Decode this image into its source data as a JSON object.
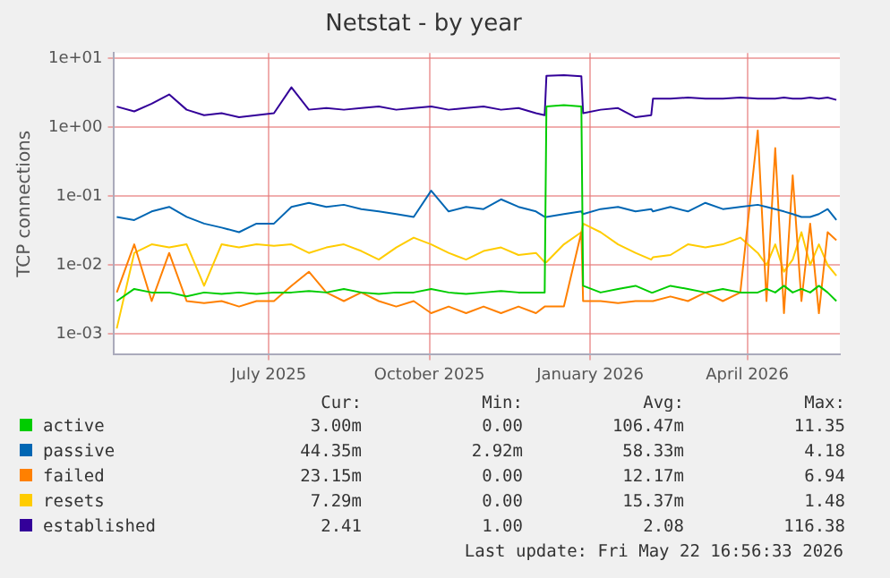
{
  "chart_data": {
    "type": "line",
    "title": "Netstat - by year",
    "ylabel": "TCP connections",
    "log": true,
    "grid": true,
    "legend": "bottom",
    "marker": "none",
    "line_style": "solid",
    "ylim": [
      0.0005,
      12
    ],
    "yticks": [
      {
        "value": 0.001,
        "label": "1e-03"
      },
      {
        "value": 0.01,
        "label": "1e-02"
      },
      {
        "value": 0.1,
        "label": "1e-01"
      },
      {
        "value": 1,
        "label": "1e+00"
      },
      {
        "value": 10,
        "label": "1e+01"
      }
    ],
    "xlim": [
      "2025-04-03",
      "2026-05-24"
    ],
    "xticks": [
      {
        "value": "2025-07-01",
        "label": "July 2025"
      },
      {
        "value": "2025-10-01",
        "label": "October 2025"
      },
      {
        "value": "2026-01-01",
        "label": "January 2026"
      },
      {
        "value": "2026-04-01",
        "label": "April 2026"
      }
    ],
    "x": [
      "2025-04-05",
      "2025-04-15",
      "2025-04-25",
      "2025-05-05",
      "2025-05-15",
      "2025-05-25",
      "2025-06-04",
      "2025-06-14",
      "2025-06-24",
      "2025-07-04",
      "2025-07-14",
      "2025-07-24",
      "2025-08-03",
      "2025-08-13",
      "2025-08-23",
      "2025-09-02",
      "2025-09-12",
      "2025-09-22",
      "2025-10-02",
      "2025-10-12",
      "2025-10-22",
      "2025-11-01",
      "2025-11-11",
      "2025-11-21",
      "2025-12-01",
      "2025-12-06",
      "2025-12-07",
      "2025-12-17",
      "2025-12-27",
      "2025-12-28",
      "2026-01-07",
      "2026-01-17",
      "2026-01-27",
      "2026-02-05",
      "2026-02-06",
      "2026-02-16",
      "2026-02-26",
      "2026-03-08",
      "2026-03-18",
      "2026-03-28",
      "2026-04-07",
      "2026-04-12",
      "2026-04-17",
      "2026-04-22",
      "2026-04-27",
      "2026-05-02",
      "2026-05-07",
      "2026-05-12",
      "2026-05-17",
      "2026-05-22"
    ],
    "series": [
      {
        "name": "active",
        "color": "#00cc00",
        "values": [
          0.003,
          0.0045,
          0.004,
          0.004,
          0.0035,
          0.004,
          0.0038,
          0.004,
          0.0038,
          0.004,
          0.004,
          0.0042,
          0.004,
          0.0045,
          0.004,
          0.0038,
          0.004,
          0.004,
          0.0045,
          0.004,
          0.0038,
          0.004,
          0.0042,
          0.004,
          0.004,
          0.004,
          2.0,
          2.1,
          2.0,
          0.005,
          0.004,
          0.0045,
          0.005,
          0.004,
          0.004,
          0.005,
          0.0045,
          0.004,
          0.0045,
          0.004,
          0.004,
          0.0045,
          0.004,
          0.005,
          0.004,
          0.0045,
          0.004,
          0.005,
          0.004,
          0.003
        ]
      },
      {
        "name": "passive",
        "color": "#0066b3",
        "values": [
          0.05,
          0.045,
          0.06,
          0.07,
          0.05,
          0.04,
          0.035,
          0.03,
          0.04,
          0.04,
          0.07,
          0.08,
          0.07,
          0.075,
          0.065,
          0.06,
          0.055,
          0.05,
          0.12,
          0.06,
          0.07,
          0.065,
          0.09,
          0.07,
          0.06,
          0.05,
          0.05,
          0.055,
          0.06,
          0.055,
          0.065,
          0.07,
          0.06,
          0.065,
          0.06,
          0.07,
          0.06,
          0.08,
          0.065,
          0.07,
          0.075,
          0.07,
          0.065,
          0.06,
          0.055,
          0.05,
          0.05,
          0.055,
          0.065,
          0.045
        ]
      },
      {
        "name": "failed",
        "color": "#ff8000",
        "values": [
          0.004,
          0.02,
          0.003,
          0.015,
          0.003,
          0.0028,
          0.003,
          0.0025,
          0.003,
          0.003,
          0.005,
          0.008,
          0.004,
          0.003,
          0.004,
          0.003,
          0.0025,
          0.003,
          0.002,
          0.0025,
          0.002,
          0.0025,
          0.002,
          0.0025,
          0.002,
          0.0025,
          0.0025,
          0.0025,
          0.03,
          0.003,
          0.003,
          0.0028,
          0.003,
          0.003,
          0.003,
          0.0035,
          0.003,
          0.004,
          0.003,
          0.004,
          0.9,
          0.003,
          0.5,
          0.002,
          0.2,
          0.003,
          0.04,
          0.002,
          0.03,
          0.023
        ]
      },
      {
        "name": "resets",
        "color": "#ffcc00",
        "values": [
          0.0012,
          0.015,
          0.02,
          0.018,
          0.02,
          0.005,
          0.02,
          0.018,
          0.02,
          0.019,
          0.02,
          0.015,
          0.018,
          0.02,
          0.016,
          0.012,
          0.018,
          0.025,
          0.02,
          0.015,
          0.012,
          0.016,
          0.018,
          0.014,
          0.015,
          0.011,
          0.011,
          0.02,
          0.03,
          0.04,
          0.03,
          0.02,
          0.015,
          0.012,
          0.013,
          0.014,
          0.02,
          0.018,
          0.02,
          0.025,
          0.015,
          0.01,
          0.02,
          0.008,
          0.012,
          0.03,
          0.01,
          0.02,
          0.01,
          0.007
        ]
      },
      {
        "name": "established",
        "color": "#330099",
        "values": [
          2.0,
          1.7,
          2.2,
          3.0,
          1.8,
          1.5,
          1.6,
          1.4,
          1.5,
          1.6,
          3.8,
          1.8,
          1.9,
          1.8,
          1.9,
          2.0,
          1.8,
          1.9,
          2.0,
          1.8,
          1.9,
          2.0,
          1.8,
          1.9,
          1.6,
          1.5,
          5.6,
          5.7,
          5.5,
          1.6,
          1.8,
          1.9,
          1.4,
          1.5,
          2.6,
          2.6,
          2.7,
          2.6,
          2.6,
          2.7,
          2.6,
          2.6,
          2.6,
          2.7,
          2.6,
          2.6,
          2.7,
          2.6,
          2.7,
          2.5
        ]
      }
    ],
    "annotations": [
      "Cur:",
      "Min:",
      "Avg:",
      "Max:",
      "3.00m",
      "0.00",
      "106.47m",
      "11.35",
      "44.35m",
      "2.92m",
      "58.33m",
      "4.18",
      "23.15m",
      "0.00",
      "12.17m",
      "6.94",
      "7.29m",
      "0.00",
      "15.37m",
      "1.48",
      "2.41",
      "1.00",
      "2.08",
      "116.38",
      "Last update: Fri May 22 16:56:33 2026"
    ]
  }
}
